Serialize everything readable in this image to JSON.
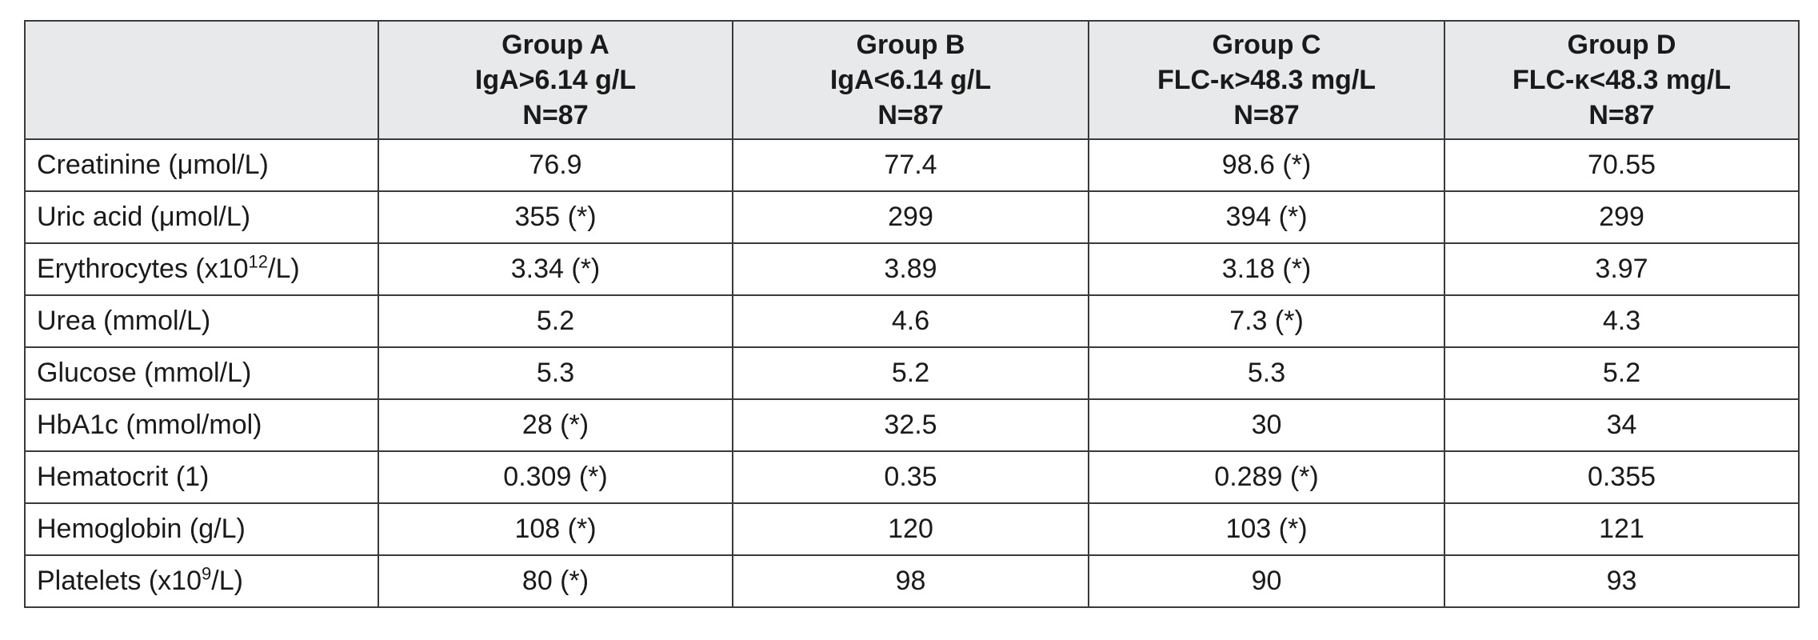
{
  "table": {
    "columns": [
      {
        "name": "Group A",
        "criterion": "IgA>6.14 g/L",
        "n": "N=87"
      },
      {
        "name": "Group B",
        "criterion": "IgA<6.14 g/L",
        "n": "N=87"
      },
      {
        "name": "Group C",
        "criterion": "FLC-κ>48.3 mg/L",
        "n": "N=87"
      },
      {
        "name": "Group D",
        "criterion": "FLC-κ<48.3 mg/L",
        "n": "N=87"
      }
    ],
    "rows": [
      {
        "label": "Creatinine (μmol/L)",
        "values": [
          "76.9",
          "77.4",
          "98.6 (*)",
          "70.55"
        ]
      },
      {
        "label": "Uric acid (μmol/L)",
        "values": [
          "355 (*)",
          "299",
          "394 (*)",
          "299"
        ]
      },
      {
        "label": "Erythrocytes (x10",
        "label_sup": "12",
        "label_tail": "/L)",
        "values": [
          "3.34 (*)",
          "3.89",
          "3.18 (*)",
          "3.97"
        ]
      },
      {
        "label": "Urea (mmol/L)",
        "values": [
          "5.2",
          "4.6",
          "7.3 (*)",
          "4.3"
        ]
      },
      {
        "label": "Glucose (mmol/L)",
        "values": [
          "5.3",
          "5.2",
          "5.3",
          "5.2"
        ]
      },
      {
        "label": "HbA1c (mmol/mol)",
        "values": [
          "28 (*)",
          "32.5",
          "30",
          "34"
        ]
      },
      {
        "label": "Hematocrit (1)",
        "values": [
          "0.309 (*)",
          "0.35",
          "0.289 (*)",
          "0.355"
        ]
      },
      {
        "label": "Hemoglobin (g/L)",
        "values": [
          "108 (*)",
          "120",
          "103 (*)",
          "121"
        ]
      },
      {
        "label": "Platelets (x10",
        "label_sup": "9",
        "label_tail": "/L)",
        "values": [
          "80 (*)",
          "98",
          "90",
          "93"
        ]
      }
    ]
  }
}
